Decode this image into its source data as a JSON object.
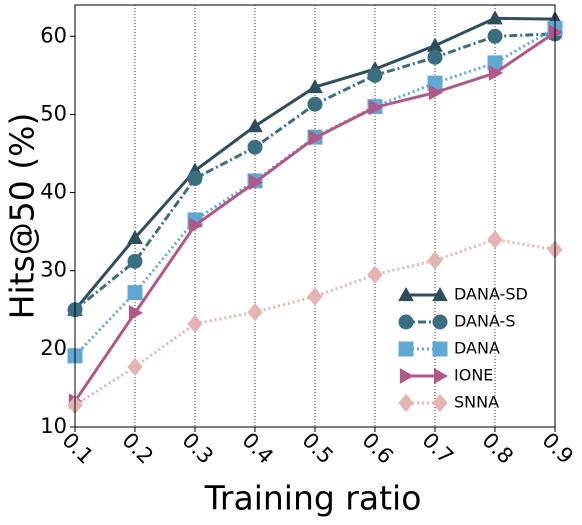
{
  "chart_data": {
    "type": "line",
    "xlabel": "Training ratio",
    "ylabel": "Hits@50 (%)",
    "x": [
      0.1,
      0.2,
      0.3,
      0.4,
      0.5,
      0.6,
      0.7,
      0.8,
      0.9
    ],
    "xlim": [
      0.1,
      0.9
    ],
    "xticks": [
      0.1,
      0.2,
      0.3,
      0.4,
      0.5,
      0.6,
      0.7,
      0.8,
      0.9
    ],
    "ylim": [
      10,
      64
    ],
    "yticks": [
      10,
      20,
      30,
      40,
      50,
      60
    ],
    "grid": "x",
    "legend": "lower right",
    "series": [
      {
        "name": "DANA-SD",
        "color": "#2f4e5d",
        "marker": "triangle",
        "linestyle": "solid",
        "values": [
          25,
          34.2,
          42.8,
          48.5,
          53.5,
          55.8,
          58.8,
          62.3,
          62.2
        ]
      },
      {
        "name": "DANA-S",
        "color": "#3a6f82",
        "marker": "circle",
        "linestyle": "dashdot",
        "values": [
          25,
          31.2,
          41.8,
          45.8,
          51.3,
          55,
          57.3,
          60,
          60.3
        ]
      },
      {
        "name": "DANA",
        "color": "#5fa8d3",
        "marker": "square",
        "linestyle": "dotted",
        "values": [
          19.1,
          27.2,
          36.5,
          41.5,
          47.1,
          51,
          54,
          56.6,
          61
        ]
      },
      {
        "name": "IONE",
        "color": "#b0588a",
        "marker": "triangle-right",
        "linestyle": "solid",
        "values": [
          13.3,
          24.6,
          35.8,
          41.3,
          47,
          50.9,
          52.8,
          55.3,
          60.5
        ]
      },
      {
        "name": "SNNA",
        "color": "#e6b3b3",
        "marker": "diamond",
        "linestyle": "dotted",
        "values": [
          12.8,
          17.7,
          23.2,
          24.7,
          26.7,
          29.5,
          31.3,
          34,
          32.7
        ]
      }
    ]
  }
}
